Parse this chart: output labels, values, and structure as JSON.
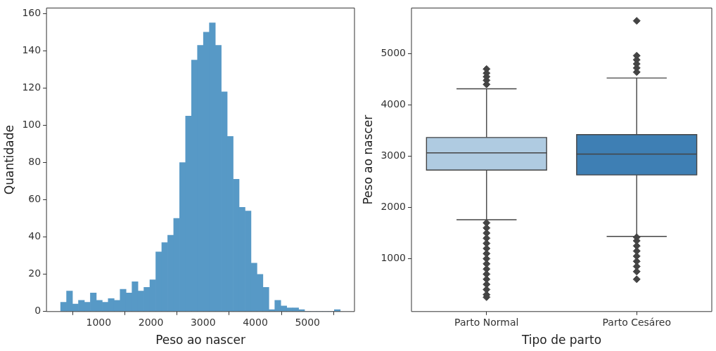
{
  "chart_data": [
    {
      "type": "histogram",
      "xlabel": "Peso ao nascer",
      "ylabel": "Quantidade",
      "color": "#5799c6",
      "bins": [
        270,
        384,
        498,
        612,
        726,
        840,
        954,
        1068,
        1182,
        1296,
        1410,
        1524,
        1638,
        1752,
        1866,
        1980,
        2094,
        2208,
        2322,
        2436,
        2550,
        2664,
        2778,
        2892,
        3006,
        3120,
        3234,
        3348,
        3462,
        3576,
        3690,
        3804,
        3918,
        4032,
        4146,
        4260,
        4374,
        4488,
        4602,
        4716,
        4830,
        4944,
        5058,
        5172,
        5286,
        5400,
        5514,
        5628
      ],
      "values": [
        5,
        11,
        4,
        6,
        5,
        10,
        6,
        5,
        7,
        6,
        12,
        10,
        16,
        11,
        13,
        17,
        32,
        37,
        41,
        50,
        80,
        105,
        135,
        143,
        150,
        155,
        143,
        118,
        94,
        71,
        56,
        54,
        26,
        20,
        13,
        1,
        6,
        3,
        2,
        2,
        1,
        0,
        0,
        0,
        0,
        0,
        1
      ],
      "xlim": [
        0,
        5900
      ],
      "ylim": [
        0,
        163
      ],
      "xticks": [
        1000,
        2000,
        3000,
        4000,
        5000
      ],
      "yticks": [
        0,
        20,
        40,
        60,
        80,
        100,
        120,
        140,
        160
      ],
      "grid": false
    },
    {
      "type": "box",
      "xlabel": "Tipo de parto",
      "ylabel": "Peso ao nascer",
      "categories": [
        "Parto Normal",
        "Parto Cesáreo"
      ],
      "colors": [
        "#afcbe1",
        "#3e7fb4"
      ],
      "boxes": [
        {
          "low": 1760,
          "q1": 2730,
          "median": 3065,
          "q3": 3365,
          "high": 4315,
          "outliers": [
            4400,
            4480,
            4550,
            4620,
            4700,
            1700,
            1600,
            1500,
            1400,
            1300,
            1200,
            1100,
            1000,
            900,
            800,
            700,
            600,
            500,
            400,
            300,
            250
          ]
        },
        {
          "low": 1435,
          "q1": 2635,
          "median": 3040,
          "q3": 3420,
          "high": 4525,
          "outliers": [
            4640,
            4720,
            4800,
            4880,
            4960,
            5640,
            1420,
            1350,
            1250,
            1150,
            1050,
            950,
            850,
            750,
            600
          ]
        }
      ],
      "ylim": [
        -30,
        5890
      ],
      "yticks": [
        1000,
        2000,
        3000,
        4000,
        5000
      ],
      "grid": false
    }
  ]
}
